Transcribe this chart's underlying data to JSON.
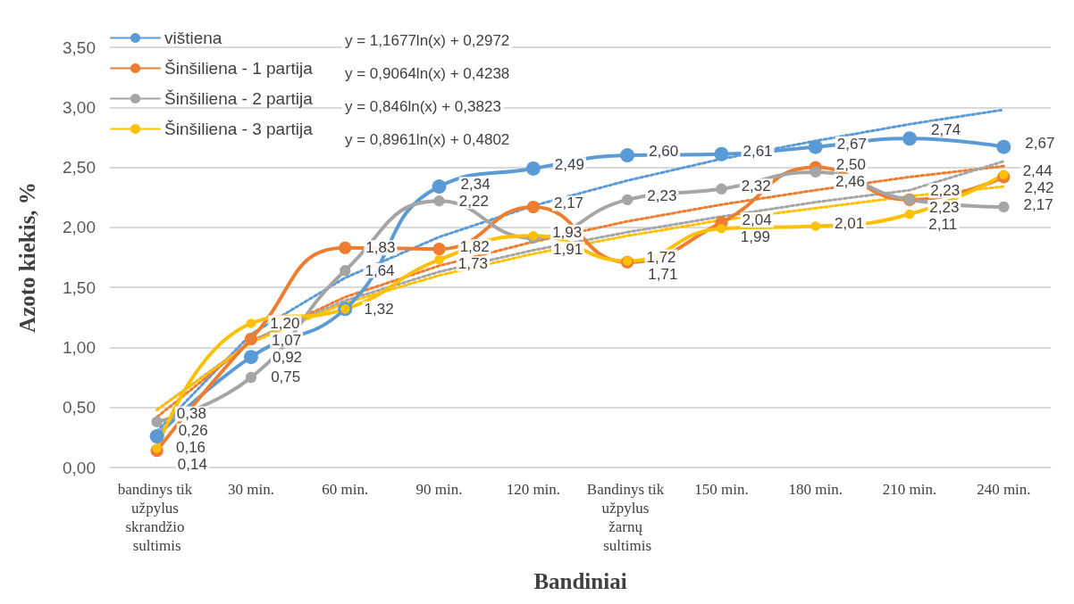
{
  "chart_data": {
    "type": "line",
    "xlabel": "Bandiniai",
    "ylabel": "Azoto kiekis, %",
    "categories": [
      "bandinys tik užpylus skrandžio sultimis",
      "30 min.",
      "60 min.",
      "90 min.",
      "120 min.",
      "Bandinys tik užpylus žarnų sultimis",
      "150 min.",
      "180 min.",
      "210 min.",
      "240 min."
    ],
    "series": [
      {
        "name": "vištiena",
        "color": "#5b9bd5",
        "values": [
          0.26,
          0.92,
          1.32,
          2.34,
          2.49,
          2.6,
          2.61,
          2.67,
          2.74,
          2.67
        ],
        "value_labels": [
          "0,26",
          "0,92",
          null,
          "2,34",
          "2,49",
          "2,60",
          "2,61",
          "2,67",
          "2,74",
          "2,67"
        ]
      },
      {
        "name": "Šinšiliena - 1 partija",
        "color": "#ed7d31",
        "values": [
          0.14,
          1.07,
          1.83,
          1.82,
          2.17,
          1.71,
          2.04,
          2.5,
          2.23,
          2.42
        ],
        "value_labels": [
          "0,14",
          "1,07",
          "1,83",
          "1,82",
          "2,17",
          "1,71",
          "2,04",
          "2,50",
          "2,23",
          "2,42"
        ]
      },
      {
        "name": "Šinšiliena - 2 partija",
        "color": "#a5a5a5",
        "values": [
          0.38,
          0.75,
          1.64,
          2.22,
          1.91,
          2.23,
          2.32,
          2.46,
          2.23,
          2.17
        ],
        "value_labels": [
          "0,38",
          "0,75",
          "1,64",
          "2,22",
          "1,91",
          "2,23",
          "2,32",
          "2,46",
          "2,23",
          "2,17"
        ]
      },
      {
        "name": "Šinšiliena - 3 partija",
        "color": "#ffc000",
        "values": [
          0.16,
          1.2,
          1.32,
          1.73,
          1.93,
          1.72,
          1.99,
          2.01,
          2.11,
          2.44
        ],
        "value_labels": [
          "0,16",
          "1,20",
          "1,32",
          "1,73",
          "1,93",
          "1,72",
          "1,99",
          "2,01",
          "2,11",
          "2,44"
        ]
      },
      {
        "type": "line",
        "color": "#5b9bd5",
        "line_style": "dotted",
        "marker": "none",
        "values": [
          0.3,
          1.11,
          1.58,
          1.92,
          2.18,
          2.39,
          2.57,
          2.72,
          2.86,
          2.98
        ]
      },
      {
        "type": "line",
        "color": "#ed7d31",
        "line_style": "dotted",
        "marker": "none",
        "values": [
          0.42,
          1.05,
          1.42,
          1.68,
          1.88,
          2.05,
          2.19,
          2.31,
          2.42,
          2.51
        ]
      },
      {
        "type": "line",
        "color": "#a5a5a5",
        "line_style": "dotted",
        "marker": "none",
        "values": [
          0.48,
          1.05,
          1.39,
          1.63,
          1.81,
          1.96,
          2.09,
          2.21,
          2.31,
          2.55
        ]
      },
      {
        "type": "line",
        "color": "#ffc000",
        "line_style": "dotted",
        "marker": "none",
        "values": [
          0.48,
          1.04,
          1.37,
          1.6,
          1.78,
          1.93,
          2.06,
          2.16,
          2.26,
          2.34
        ]
      }
    ],
    "ylim": [
      0,
      3.5
    ],
    "yticks": [
      {
        "value": 0,
        "label": "0,00"
      },
      {
        "value": 0.5,
        "label": "0,50"
      },
      {
        "value": 1,
        "label": "1,00"
      },
      {
        "value": 1.5,
        "label": "1,50"
      },
      {
        "value": 2,
        "label": "2,00"
      },
      {
        "value": 2.5,
        "label": "2,50"
      },
      {
        "value": 3,
        "label": "3,00"
      },
      {
        "value": 3.5,
        "label": "3,50"
      }
    ],
    "grid": "y",
    "legend": "top left",
    "marker": "circle",
    "line_style": "solid",
    "annotations": [
      "y = 1,1677ln(x) + 0,2972",
      "y = 0,9064ln(x) + 0,4238",
      "y = 0,846ln(x) + 0,3823",
      "y = 0,8961ln(x) + 0,4802"
    ]
  }
}
